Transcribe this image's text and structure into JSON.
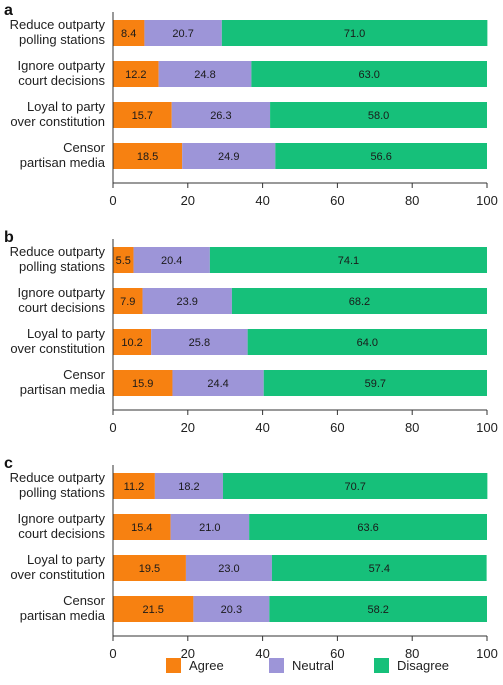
{
  "colors": {
    "agree": "#f78111",
    "neutral": "#9d95d8",
    "disagree": "#16c07a",
    "axis": "#333333"
  },
  "legend": {
    "placement": "bottom-center",
    "items": [
      {
        "key": "agree",
        "label": "Agree"
      },
      {
        "key": "neutral",
        "label": "Neutral"
      },
      {
        "key": "disagree",
        "label": "Disagree"
      }
    ]
  },
  "chart_data": [
    {
      "type": "bar",
      "orientation": "horizontal",
      "stacked": true,
      "panel": "a",
      "categories": [
        [
          "Reduce outparty",
          "polling stations"
        ],
        [
          "Ignore outparty",
          "court decisions"
        ],
        [
          "Loyal to party",
          "over constitution"
        ],
        [
          "Censor",
          "partisan media"
        ]
      ],
      "series": [
        {
          "name": "Agree",
          "values": [
            8.4,
            12.2,
            15.7,
            18.5
          ]
        },
        {
          "name": "Neutral",
          "values": [
            20.7,
            24.8,
            26.3,
            24.9
          ]
        },
        {
          "name": "Disagree",
          "values": [
            71.0,
            63.0,
            58.0,
            56.6
          ]
        }
      ],
      "xticks": [
        "0",
        "20",
        "40",
        "60",
        "80",
        "100"
      ],
      "xlim": [
        0,
        100
      ],
      "grid": false
    },
    {
      "type": "bar",
      "orientation": "horizontal",
      "stacked": true,
      "panel": "b",
      "categories": [
        [
          "Reduce outparty",
          "polling stations"
        ],
        [
          "Ignore outparty",
          "court decisions"
        ],
        [
          "Loyal to party",
          "over constitution"
        ],
        [
          "Censor",
          "partisan media"
        ]
      ],
      "series": [
        {
          "name": "Agree",
          "values": [
            5.5,
            7.9,
            10.2,
            15.9
          ]
        },
        {
          "name": "Neutral",
          "values": [
            20.4,
            23.9,
            25.8,
            24.4
          ]
        },
        {
          "name": "Disagree",
          "values": [
            74.1,
            68.2,
            64.0,
            59.7
          ]
        }
      ],
      "xticks": [
        "0",
        "20",
        "40",
        "60",
        "80",
        "100"
      ],
      "xlim": [
        0,
        100
      ],
      "grid": false
    },
    {
      "type": "bar",
      "orientation": "horizontal",
      "stacked": true,
      "panel": "c",
      "categories": [
        [
          "Reduce outparty",
          "polling stations"
        ],
        [
          "Ignore outparty",
          "court decisions"
        ],
        [
          "Loyal to party",
          "over constitution"
        ],
        [
          "Censor",
          "partisan media"
        ]
      ],
      "series": [
        {
          "name": "Agree",
          "values": [
            11.2,
            15.4,
            19.5,
            21.5
          ]
        },
        {
          "name": "Neutral",
          "values": [
            18.2,
            21.0,
            23.0,
            20.3
          ]
        },
        {
          "name": "Disagree",
          "values": [
            70.7,
            63.6,
            57.4,
            58.2
          ]
        }
      ],
      "xticks": [
        "0",
        "20",
        "40",
        "60",
        "80",
        "100"
      ],
      "xlim": [
        0,
        100
      ],
      "grid": false
    }
  ]
}
